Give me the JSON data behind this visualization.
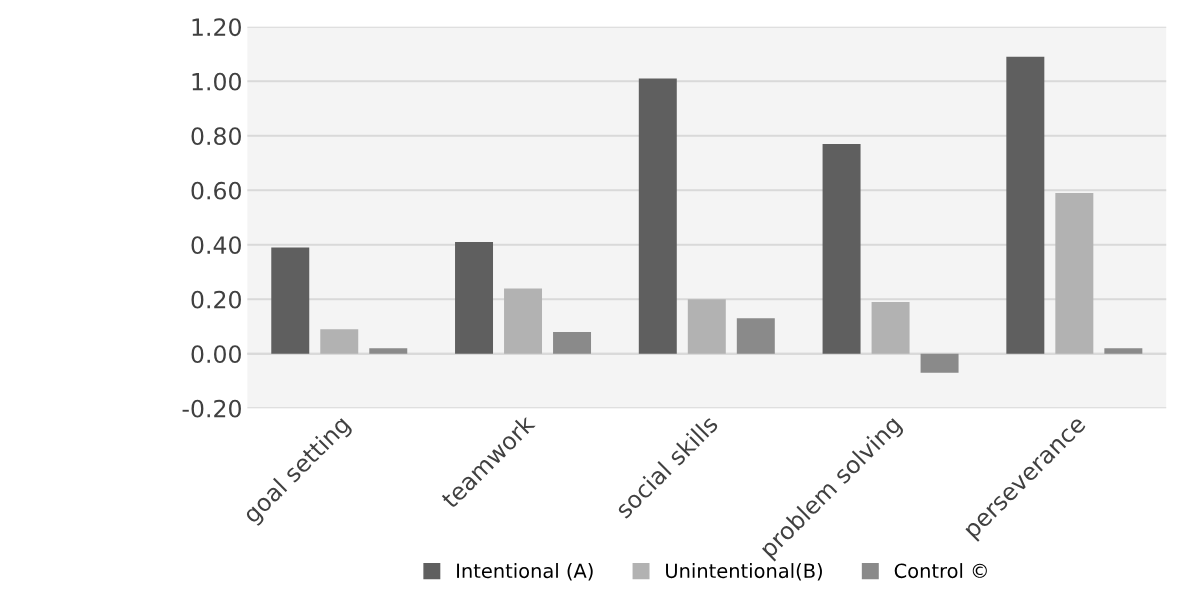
{
  "chart_data": {
    "type": "bar",
    "categories": [
      "goal setting",
      "teamwork",
      "social skills",
      "problem solving",
      "perseverance"
    ],
    "series": [
      {
        "name": "Intentional (A)",
        "color": "#5f5f5f",
        "values": [
          0.39,
          0.41,
          1.01,
          0.77,
          1.09
        ]
      },
      {
        "name": "Unintentional(B)",
        "color": "#b2b2b2",
        "values": [
          0.09,
          0.24,
          0.2,
          0.19,
          0.59
        ]
      },
      {
        "name": "Control ©",
        "color": "#8a8a8a",
        "values": [
          0.02,
          0.08,
          0.13,
          -0.07,
          0.02
        ]
      }
    ],
    "ylim": [
      -0.2,
      1.2
    ],
    "yticks": [
      {
        "value": -0.2,
        "label": "-0.20"
      },
      {
        "value": 0,
        "label": "0.00"
      },
      {
        "value": 0.2,
        "label": "0.20"
      },
      {
        "value": 0.4,
        "label": "0.40"
      },
      {
        "value": 0.6,
        "label": "0.60"
      },
      {
        "value": 0.8,
        "label": "0.80"
      },
      {
        "value": 1.0,
        "label": "1.00"
      },
      {
        "value": 1.2,
        "label": "1.20"
      }
    ],
    "grid": "y",
    "legend": "bottom"
  }
}
